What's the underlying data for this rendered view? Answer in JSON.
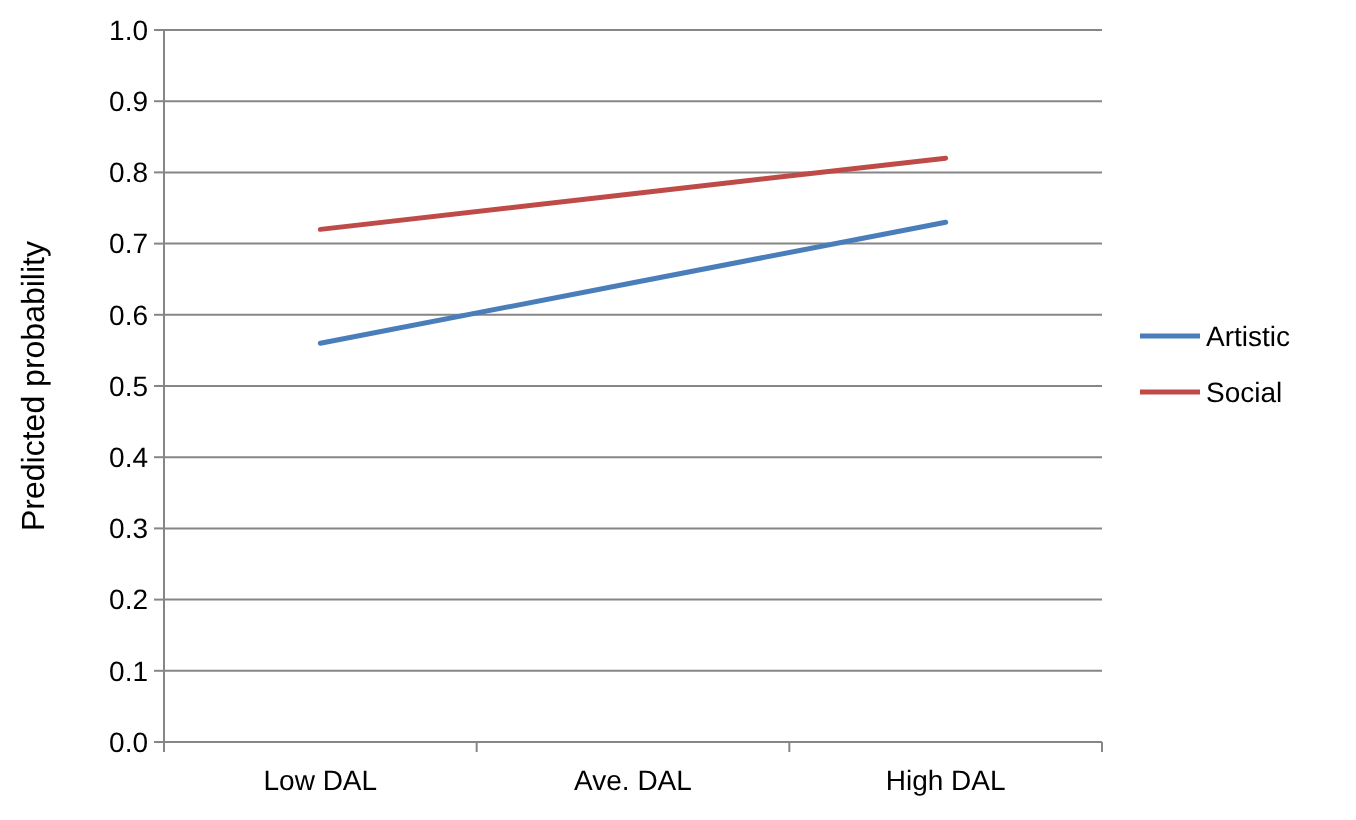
{
  "chart_data": {
    "type": "line",
    "ylabel": "Predicted probability",
    "categories": [
      "Low DAL",
      "Ave. DAL",
      "High DAL"
    ],
    "series": [
      {
        "name": "Artistic",
        "color": "#4a7ebb",
        "values": [
          0.56,
          0.645,
          0.73
        ]
      },
      {
        "name": "Social",
        "color": "#be4b48",
        "values": [
          0.72,
          0.77,
          0.82
        ]
      }
    ],
    "ylim": [
      0,
      1
    ],
    "yticks": [
      {
        "value": 0,
        "label": "0.0"
      },
      {
        "value": 0.1,
        "label": "0.1"
      },
      {
        "value": 0.2,
        "label": "0.2"
      },
      {
        "value": 0.3,
        "label": "0.3"
      },
      {
        "value": 0.4,
        "label": "0.4"
      },
      {
        "value": 0.5,
        "label": "0.5"
      },
      {
        "value": 0.6,
        "label": "0.6"
      },
      {
        "value": 0.7,
        "label": "0.7"
      },
      {
        "value": 0.8,
        "label": "0.8"
      },
      {
        "value": 0.9,
        "label": "0.9"
      },
      {
        "value": 1,
        "label": "1.0"
      }
    ],
    "grid": "y",
    "legend": "right",
    "marker": "none",
    "line_style": "solid"
  }
}
